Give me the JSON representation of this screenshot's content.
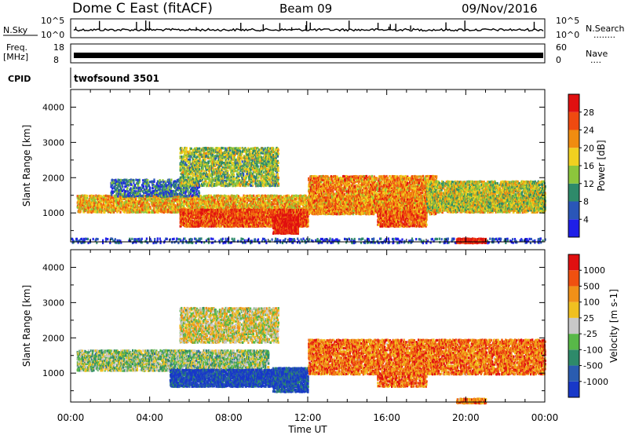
{
  "header": {
    "title": "Dome C East (fitACF)",
    "beam": "Beam 09",
    "date": "09/Nov/2016"
  },
  "strip_panels": {
    "nsky_label": "N.Sky",
    "nsearch_label": "N.Search",
    "nsearch_dots": "........",
    "nsky_ticks": [
      "10^5",
      "10^0"
    ],
    "nsearch_ticks": [
      "10^5",
      "10^0"
    ],
    "freq_label_1": "Freq.",
    "freq_label_2": "[MHz]",
    "freq_ticks": [
      "18",
      "8"
    ],
    "nave_label": "Nave",
    "nave_dots": "....",
    "nave_ticks": [
      "60",
      "0"
    ],
    "cpid_label": "CPID",
    "cpid_value": "twofsound 3501"
  },
  "chart_data": [
    {
      "type": "heatmap",
      "ylabel": "Slant Range [km]",
      "xlabel": "",
      "x_ticks": [
        "00:00",
        "04:00",
        "08:00",
        "12:00",
        "16:00",
        "20:00",
        "00:00"
      ],
      "x_range_hours": [
        0,
        24
      ],
      "y_ticks": [
        1000,
        2000,
        3000,
        4000
      ],
      "y_range_km": [
        180,
        4500
      ],
      "colorbar": {
        "label": "Power [dB]",
        "ticks": [
          "4",
          "8",
          "12",
          "16",
          "20",
          "24",
          "28"
        ],
        "colors": [
          "#1f1fe8",
          "#2a56b8",
          "#2e8a6a",
          "#8cc63c",
          "#f0d020",
          "#f08c10",
          "#f04a10",
          "#e01010"
        ]
      },
      "bands": [
        {
          "t0": 0.3,
          "t1": 24.0,
          "r0": 1050,
          "r1": 1550,
          "density": 0.55,
          "level": 0.62
        },
        {
          "t0": 2.0,
          "t1": 6.5,
          "r0": 1500,
          "r1": 2000,
          "density": 0.35,
          "level": 0.25
        },
        {
          "t0": 5.5,
          "t1": 10.5,
          "r0": 1800,
          "r1": 2900,
          "density": 0.45,
          "level": 0.45
        },
        {
          "t0": 5.5,
          "t1": 12.0,
          "r0": 650,
          "r1": 1150,
          "density": 0.7,
          "level": 0.82
        },
        {
          "t0": 10.2,
          "t1": 11.5,
          "r0": 450,
          "r1": 1000,
          "density": 0.8,
          "level": 0.95
        },
        {
          "t0": 12.0,
          "t1": 18.5,
          "r0": 1000,
          "r1": 2100,
          "density": 0.55,
          "level": 0.7
        },
        {
          "t0": 15.5,
          "t1": 18.0,
          "r0": 650,
          "r1": 1100,
          "density": 0.6,
          "level": 0.8
        },
        {
          "t0": 18.0,
          "t1": 24.0,
          "r0": 1100,
          "r1": 1950,
          "density": 0.55,
          "level": 0.5
        },
        {
          "t0": 0.0,
          "t1": 24.0,
          "r0": 180,
          "r1": 330,
          "density": 0.2,
          "level": 0.15
        },
        {
          "t0": 19.5,
          "t1": 21.0,
          "r0": 180,
          "r1": 330,
          "density": 0.9,
          "level": 0.95
        }
      ]
    },
    {
      "type": "heatmap",
      "ylabel": "Slant Range [km]",
      "xlabel": "Time UT",
      "x_ticks": [
        "00:00",
        "04:00",
        "08:00",
        "12:00",
        "16:00",
        "20:00",
        "00:00"
      ],
      "x_range_hours": [
        0,
        24
      ],
      "y_ticks": [
        1000,
        2000,
        3000,
        4000
      ],
      "y_range_km": [
        180,
        4500
      ],
      "colorbar": {
        "label": "Velocity [m s-1]",
        "ticks": [
          "1000",
          "500",
          "100",
          "25",
          "-25",
          "-100",
          "-500",
          "-1000"
        ],
        "colors": [
          "#1838c8",
          "#2a5cb0",
          "#2e8a6a",
          "#58b848",
          "#c8c8c8",
          "#f0c020",
          "#f09018",
          "#f05010",
          "#e01010"
        ]
      },
      "bands": [
        {
          "t0": 0.3,
          "t1": 10.0,
          "r0": 1100,
          "r1": 1700,
          "density": 0.55,
          "level": 0.44
        },
        {
          "t0": 5.5,
          "t1": 10.5,
          "r0": 1900,
          "r1": 2900,
          "density": 0.45,
          "level": 0.55
        },
        {
          "t0": 5.0,
          "t1": 11.5,
          "r0": 650,
          "r1": 1150,
          "density": 0.7,
          "level": 0.05
        },
        {
          "t0": 10.2,
          "t1": 12.0,
          "r0": 500,
          "r1": 1200,
          "density": 0.6,
          "level": 0.1
        },
        {
          "t0": 12.0,
          "t1": 24.0,
          "r0": 1000,
          "r1": 2000,
          "density": 0.5,
          "level": 0.78
        },
        {
          "t0": 15.5,
          "t1": 18.0,
          "r0": 650,
          "r1": 1050,
          "density": 0.45,
          "level": 0.8
        },
        {
          "t0": 19.5,
          "t1": 21.0,
          "r0": 180,
          "r1": 330,
          "density": 0.8,
          "level": 0.75
        }
      ]
    }
  ]
}
